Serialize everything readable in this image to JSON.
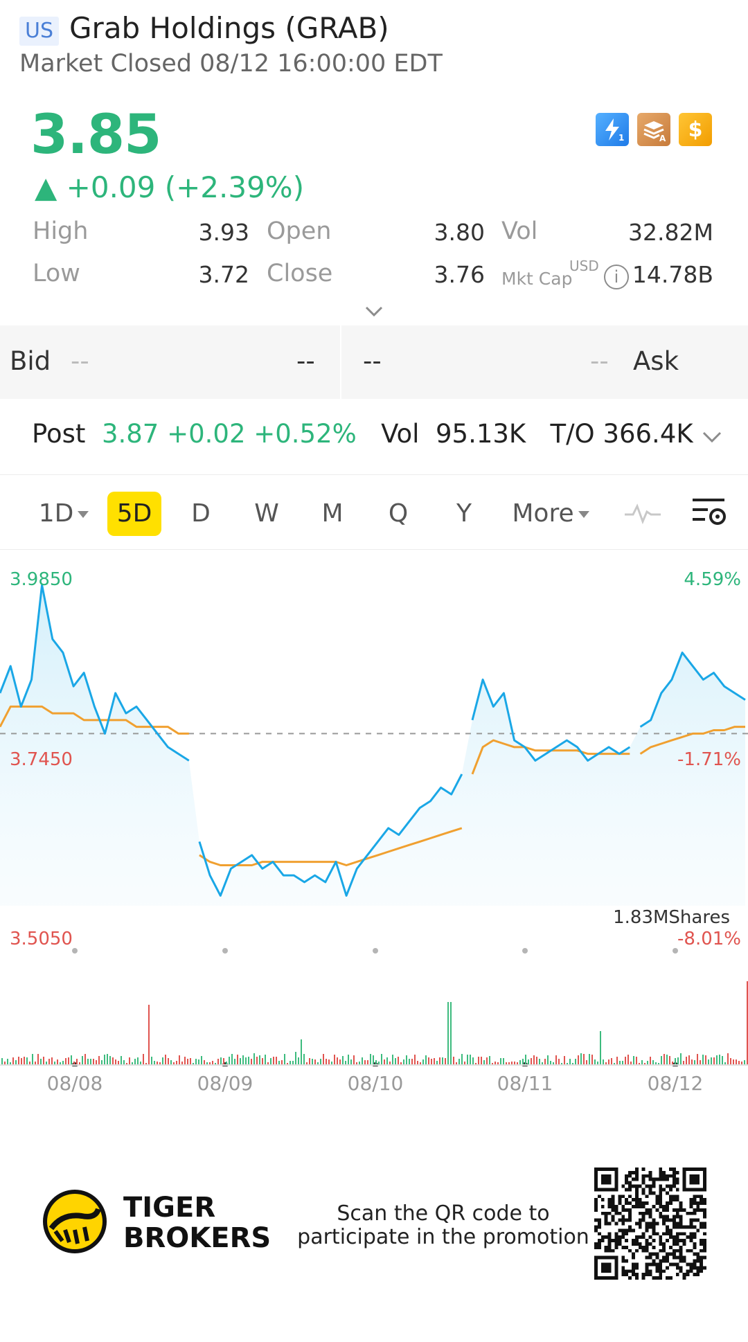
{
  "header": {
    "market": "US",
    "title": "Grab Holdings (GRAB)",
    "status": "Market Closed 08/12 16:00:00 EDT"
  },
  "quote": {
    "price": "3.85",
    "change": "▲ +0.09 (+2.39%)",
    "color_up": "#2db57b",
    "color_down": "#e0544f",
    "badges": [
      "lightning-level1-icon",
      "stack-level-a-icon",
      "dollar-icon"
    ]
  },
  "stats": {
    "high_label": "High",
    "high": "3.93",
    "low_label": "Low",
    "low": "3.72",
    "open_label": "Open",
    "open": "3.80",
    "close_label": "Close",
    "close": "3.76",
    "vol_label": "Vol",
    "vol": "32.82M",
    "mktcap_label": "Mkt Cap",
    "mktcap_currency": "USD",
    "mktcap": "14.78B"
  },
  "bidask": {
    "bid_label": "Bid",
    "bid_price": "--",
    "bid_size": "--",
    "ask_price": "--",
    "ask_size": "--",
    "ask_label": "Ask"
  },
  "post": {
    "label": "Post",
    "quote": "3.87 +0.02 +0.52%",
    "vol_label": "Vol",
    "vol": "95.13K",
    "turnover_label": "T/O",
    "turnover": "366.4K"
  },
  "tabs": [
    {
      "label": "1D",
      "active": false
    },
    {
      "label": "5D",
      "active": true
    },
    {
      "label": "D",
      "active": false
    },
    {
      "label": "W",
      "active": false
    },
    {
      "label": "M",
      "active": false
    },
    {
      "label": "Q",
      "active": false
    },
    {
      "label": "Y",
      "active": false
    },
    {
      "label": "More",
      "active": false
    }
  ],
  "chart_data": {
    "type": "line",
    "y_axis_left": [
      "3.9850",
      "3.7450",
      "3.5050"
    ],
    "y_axis_right": [
      "4.59%",
      "-1.71%",
      "-8.01%"
    ],
    "ylim": [
      3.505,
      3.985
    ],
    "prev_close": 3.76,
    "volume_max_label": "1.83MShares",
    "x_labels": [
      "08/08",
      "08/09",
      "08/10",
      "08/11",
      "08/12"
    ],
    "series": [
      {
        "values": [
          3.82,
          3.86,
          3.8,
          3.84,
          3.98,
          3.9,
          3.88,
          3.83,
          3.85,
          3.8,
          3.76,
          3.82,
          3.79,
          3.8,
          3.78,
          3.76,
          3.74,
          3.73,
          3.72,
          3.6,
          3.55,
          3.52,
          3.56,
          3.57,
          3.58,
          3.56,
          3.57,
          3.55,
          3.55,
          3.54,
          3.55,
          3.54,
          3.57,
          3.52,
          3.56,
          3.58,
          3.6,
          3.62,
          3.61,
          3.63,
          3.65,
          3.66,
          3.68,
          3.67,
          3.7,
          3.78,
          3.84,
          3.8,
          3.82,
          3.75,
          3.74,
          3.72,
          3.73,
          3.74,
          3.75,
          3.74,
          3.72,
          3.73,
          3.74,
          3.73,
          3.74,
          3.77,
          3.78,
          3.82,
          3.84,
          3.88,
          3.86,
          3.84,
          3.85,
          3.83,
          3.82,
          3.81
        ]
      },
      {
        "values": [
          3.77,
          3.8,
          3.8,
          3.8,
          3.8,
          3.79,
          3.79,
          3.79,
          3.78,
          3.78,
          3.78,
          3.78,
          3.78,
          3.77,
          3.77,
          3.77,
          3.77,
          3.76,
          3.76,
          3.58,
          3.57,
          3.565,
          3.565,
          3.565,
          3.565,
          3.57,
          3.57,
          3.57,
          3.57,
          3.57,
          3.57,
          3.57,
          3.57,
          3.565,
          3.57,
          3.575,
          3.58,
          3.585,
          3.59,
          3.595,
          3.6,
          3.605,
          3.61,
          3.615,
          3.62,
          3.7,
          3.74,
          3.75,
          3.745,
          3.74,
          3.74,
          3.735,
          3.735,
          3.735,
          3.735,
          3.735,
          3.73,
          3.73,
          3.73,
          3.73,
          3.73,
          3.73,
          3.74,
          3.745,
          3.75,
          3.755,
          3.76,
          3.76,
          3.765,
          3.765,
          3.77,
          3.77
        ]
      }
    ]
  },
  "footer": {
    "brand_line1": "TIGER",
    "brand_line2": "BROKERS",
    "promo": "Scan the QR code to participate in the promotion"
  }
}
